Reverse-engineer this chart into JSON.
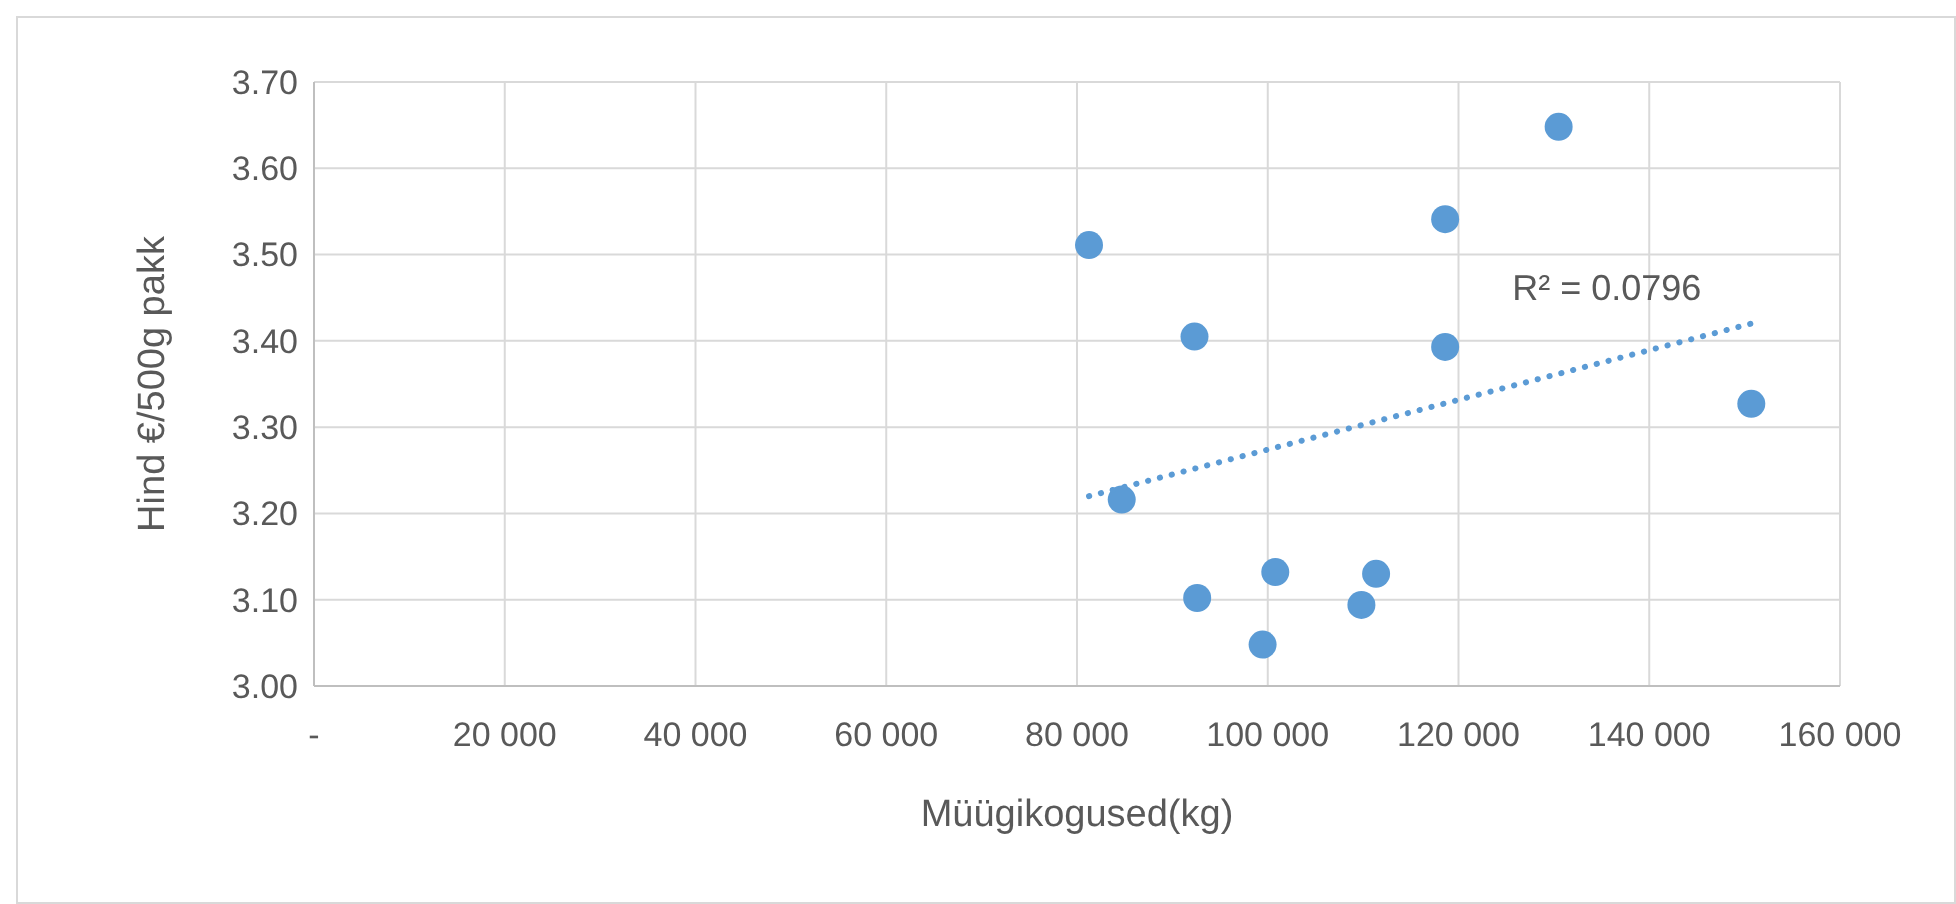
{
  "chart_data": {
    "type": "scatter",
    "xlabel": "Müügikogused(kg)",
    "ylabel": "Hind €/500g pakk",
    "xlim": [
      0,
      160000
    ],
    "xticks": [
      {
        "value": 0,
        "label": "-"
      },
      {
        "value": 20000,
        "label": "20 000"
      },
      {
        "value": 40000,
        "label": "40 000"
      },
      {
        "value": 60000,
        "label": "60 000"
      },
      {
        "value": 80000,
        "label": "80 000"
      },
      {
        "value": 100000,
        "label": "100 000"
      },
      {
        "value": 120000,
        "label": "120 000"
      },
      {
        "value": 140000,
        "label": "140 000"
      },
      {
        "value": 160000,
        "label": "160 000"
      }
    ],
    "ylim": [
      3.0,
      3.7
    ],
    "yticks": [
      {
        "value": 3.0,
        "label": "3.00"
      },
      {
        "value": 3.1,
        "label": "3.10"
      },
      {
        "value": 3.2,
        "label": "3.20"
      },
      {
        "value": 3.3,
        "label": "3.30"
      },
      {
        "value": 3.4,
        "label": "3.40"
      },
      {
        "value": 3.5,
        "label": "3.50"
      },
      {
        "value": 3.6,
        "label": "3.60"
      },
      {
        "value": 3.7,
        "label": "3.70"
      }
    ],
    "grid": true,
    "marker": "circle",
    "series": [
      {
        "color": "#5b9bd5",
        "x": [
          130500,
          118600,
          81260,
          92320,
          118600,
          150700,
          84690,
          100790,
          111360,
          92600,
          109820,
          99460
        ],
        "values": [
          3.648,
          3.541,
          3.511,
          3.405,
          3.393,
          3.327,
          3.216,
          3.132,
          3.13,
          3.102,
          3.094,
          3.048
        ]
      },
      {
        "type": "line",
        "color": "#5b9bd5",
        "line_style": "dotted",
        "marker": "none",
        "x": [
          81260,
          150700
        ],
        "values": [
          3.22,
          3.42
        ]
      }
    ],
    "annotations": [
      "R² = 0.0796"
    ]
  }
}
